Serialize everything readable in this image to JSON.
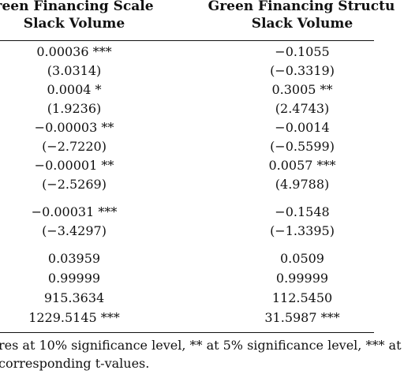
{
  "headers": {
    "left_line1": "reen Financing Scale",
    "left_line2": "Slack Volume",
    "right_line1": "Green Financing Structu",
    "right_line2": "Slack Volume"
  },
  "rows": [
    {
      "a": "0.00036 ***",
      "b": "−0.1055"
    },
    {
      "a": "(3.0314)",
      "b": "(−0.3319)"
    },
    {
      "a": "0.0004 *",
      "b": "0.3005 **"
    },
    {
      "a": "(1.9236)",
      "b": "(2.4743)"
    },
    {
      "a": "−0.00003 **",
      "b": "−0.0014"
    },
    {
      "a": "(−2.7220)",
      "b": "(−0.5599)"
    },
    {
      "a": "−0.00001 **",
      "b": "0.0057 ***"
    },
    {
      "a": "(−2.5269)",
      "b": "(4.9788)"
    },
    {
      "a": "−0.00031 ***",
      "b": "−0.1548"
    },
    {
      "a": "(−3.4297)",
      "b": "(−1.3395)"
    },
    {
      "a": "0.03959",
      "b": "0.0509"
    },
    {
      "a": "0.99999",
      "b": "0.99999"
    },
    {
      "a": "915.3634",
      "b": "112.5450"
    },
    {
      "a": "1229.5145 ***",
      "b": "31.5987 ***"
    }
  ],
  "notes": {
    "line1": "res at 10% significance level, ** at 5% significance level, *** at",
    "line2": "corresponding t-values."
  }
}
